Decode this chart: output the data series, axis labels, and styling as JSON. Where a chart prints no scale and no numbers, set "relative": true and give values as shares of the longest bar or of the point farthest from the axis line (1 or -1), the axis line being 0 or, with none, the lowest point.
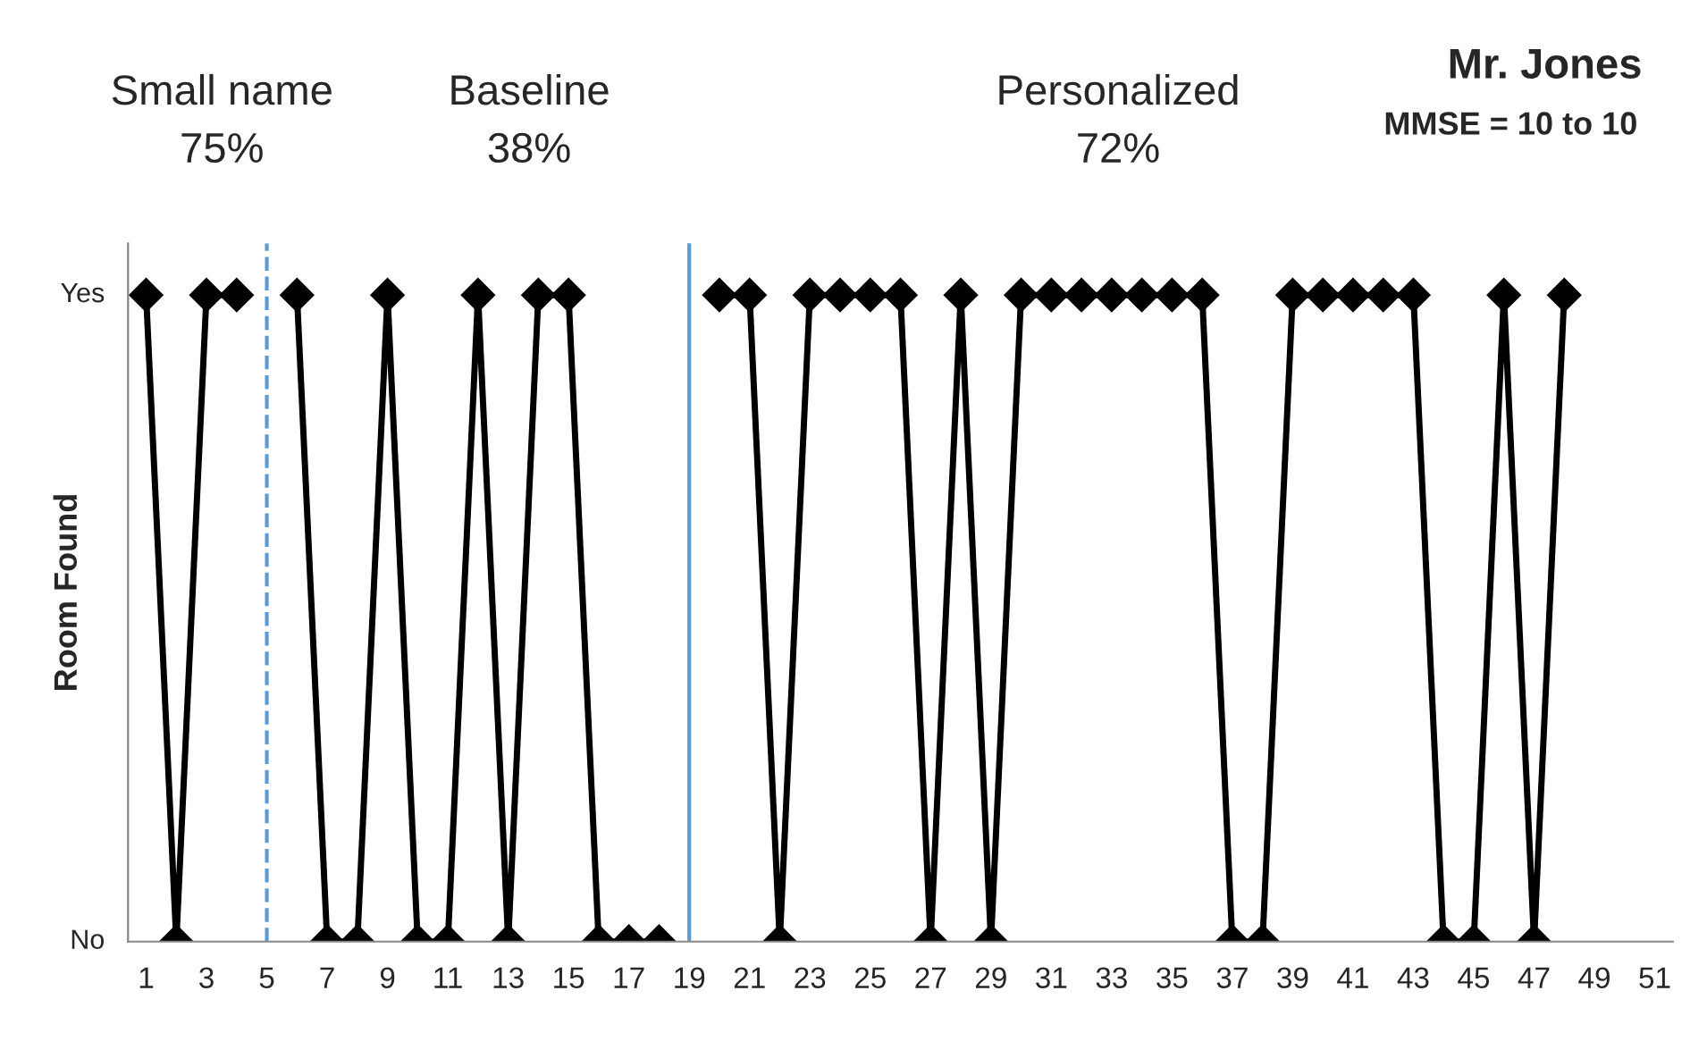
{
  "chart_data": {
    "type": "line",
    "ylabel": "Room Found",
    "categories": [
      "1",
      null,
      "3",
      null,
      "5",
      null,
      "7",
      null,
      "9",
      null,
      "11",
      null,
      "13",
      null,
      "15",
      null,
      "17",
      null,
      "19",
      null,
      "21",
      null,
      "23",
      null,
      "25",
      null,
      "27",
      null,
      "29",
      null,
      "31",
      null,
      "33",
      null,
      "35",
      null,
      "37",
      null,
      "39",
      null,
      "41",
      null,
      "43",
      null,
      "45",
      null,
      "47",
      null,
      "49",
      null,
      "51"
    ],
    "series": [
      {
        "color": "#000000",
        "values": [
          1,
          0,
          1,
          1,
          null,
          1,
          0,
          0,
          1,
          0,
          0,
          1,
          0,
          1,
          1,
          0,
          0,
          0,
          null,
          1,
          1,
          0,
          1,
          1,
          1,
          1,
          0,
          1,
          0,
          1,
          1,
          1,
          1,
          1,
          1,
          1,
          0,
          0,
          1,
          1,
          1,
          1,
          1,
          0,
          0,
          1,
          0,
          1,
          null,
          null,
          null
        ]
      }
    ],
    "relative": true,
    "marker": "diamond",
    "line_style": "solid",
    "grid": false,
    "legend": false,
    "ref_lines": [
      {
        "axis": "x",
        "value": "5",
        "color": "#5b9bd5",
        "line_style": "dashed"
      },
      {
        "axis": "x",
        "value": "19",
        "color": "#5b9bd5",
        "line_style": "solid"
      }
    ],
    "annotations": [
      "Small name\n75%",
      "Baseline\n38%",
      "Personalized\n72%",
      "Mr. Jones",
      "MMSE = 10 to 10",
      "Yes",
      "No"
    ]
  }
}
